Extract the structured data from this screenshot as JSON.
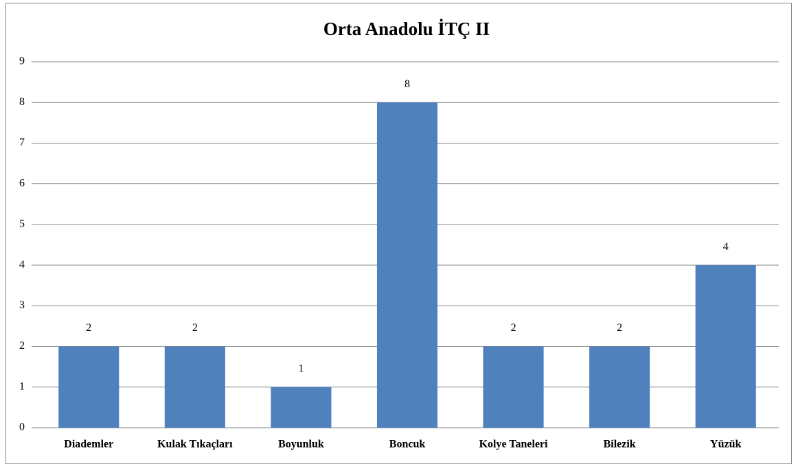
{
  "chart_data": {
    "type": "bar",
    "title": "Orta Anadolu İTÇ II",
    "categories": [
      "Diademler",
      "Kulak Tıkaçları",
      "Boyunluk",
      "Boncuk",
      "Kolye Taneleri",
      "Bilezik",
      "Yüzük"
    ],
    "values": [
      2,
      2,
      1,
      8,
      2,
      2,
      4
    ],
    "color": "#4f81bd",
    "ylim": [
      0,
      9
    ],
    "yticks": [
      0,
      1,
      2,
      3,
      4,
      5,
      6,
      7,
      8,
      9
    ],
    "grid": true,
    "data_labels": true
  }
}
